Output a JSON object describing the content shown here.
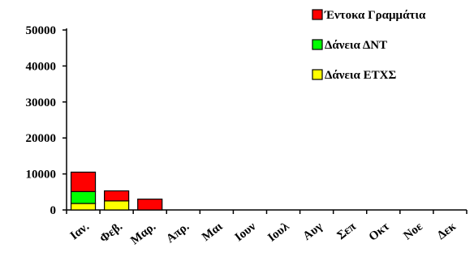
{
  "chart_data": {
    "type": "bar",
    "stacked": true,
    "title": "",
    "xlabel": "",
    "ylabel": "",
    "ylim": [
      0,
      50000
    ],
    "yticks": [
      0,
      10000,
      20000,
      30000,
      40000,
      50000
    ],
    "grid": false,
    "legend_position": "top-right",
    "categories": [
      "Ιαν.",
      "Φεβ.",
      "Μαρ.",
      "Απρ.",
      "Μαι",
      "Ιουν",
      "Ιουλ",
      "Αυγ",
      "Σεπ",
      "Οκτ",
      "Νοε",
      "Δεκ"
    ],
    "series": [
      {
        "name": "Δάνεια ΕΤΧΣ",
        "color": "#ffff00",
        "values": [
          1800,
          2500,
          0,
          0,
          0,
          0,
          0,
          0,
          0,
          0,
          0,
          0
        ]
      },
      {
        "name": "Δάνεια ΔΝΤ",
        "color": "#00ff00",
        "values": [
          3300,
          0,
          0,
          0,
          0,
          0,
          0,
          0,
          0,
          0,
          0,
          0
        ]
      },
      {
        "name": "Έντοκα Γραμμάτια",
        "color": "#ff0000",
        "values": [
          5400,
          2800,
          3000,
          0,
          0,
          0,
          0,
          0,
          0,
          0,
          0,
          0
        ]
      }
    ],
    "legend_order": [
      "Έντοκα Γραμμάτια",
      "Δάνεια ΔΝΤ",
      "Δάνεια ΕΤΧΣ"
    ]
  }
}
